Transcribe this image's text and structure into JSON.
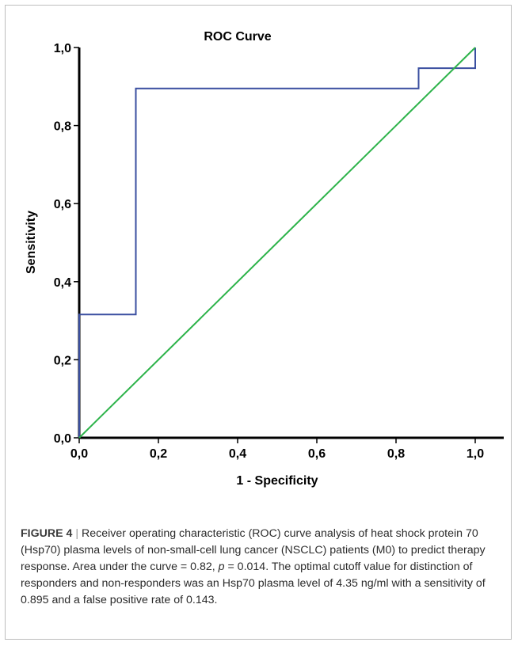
{
  "chart_data": {
    "type": "line",
    "title": "ROC Curve",
    "xlabel": "1 - Specificity",
    "ylabel": "Sensitivity",
    "xlim": [
      0,
      1
    ],
    "ylim": [
      0,
      1
    ],
    "x_ticks": [
      "0,0",
      "0,2",
      "0,4",
      "0,6",
      "0,8",
      "1,0"
    ],
    "y_ticks": [
      "0,0",
      "0,2",
      "0,4",
      "0,6",
      "0,8",
      "1,0"
    ],
    "grid": false,
    "legend": "none",
    "series": [
      {
        "color": "#3a4fa0",
        "x": [
          0,
          0,
          0.143,
          0.143,
          0.857,
          0.857,
          1.0,
          1.0
        ],
        "y": [
          0,
          0.316,
          0.316,
          0.895,
          0.895,
          0.947,
          0.947,
          1.0
        ]
      },
      {
        "color": "#2db34a",
        "x": [
          0,
          1
        ],
        "y": [
          0,
          1
        ]
      }
    ]
  },
  "caption": {
    "label": "FIGURE 4",
    "separator": "|",
    "part1": "Receiver operating characteristic (ROC) curve analysis of heat shock protein 70 (Hsp70) plasma levels of non-small-cell lung cancer (NSCLC) patients (M0) to predict therapy response. Area under the curve = 0.82, ",
    "p_symbol": "p",
    "part2": " = 0.014. The optimal cutoff value for distinction of responders and non-responders was an Hsp70 plasma level of 4.35 ng/ml with a sensitivity of 0.895 and a false positive rate of 0.143."
  }
}
